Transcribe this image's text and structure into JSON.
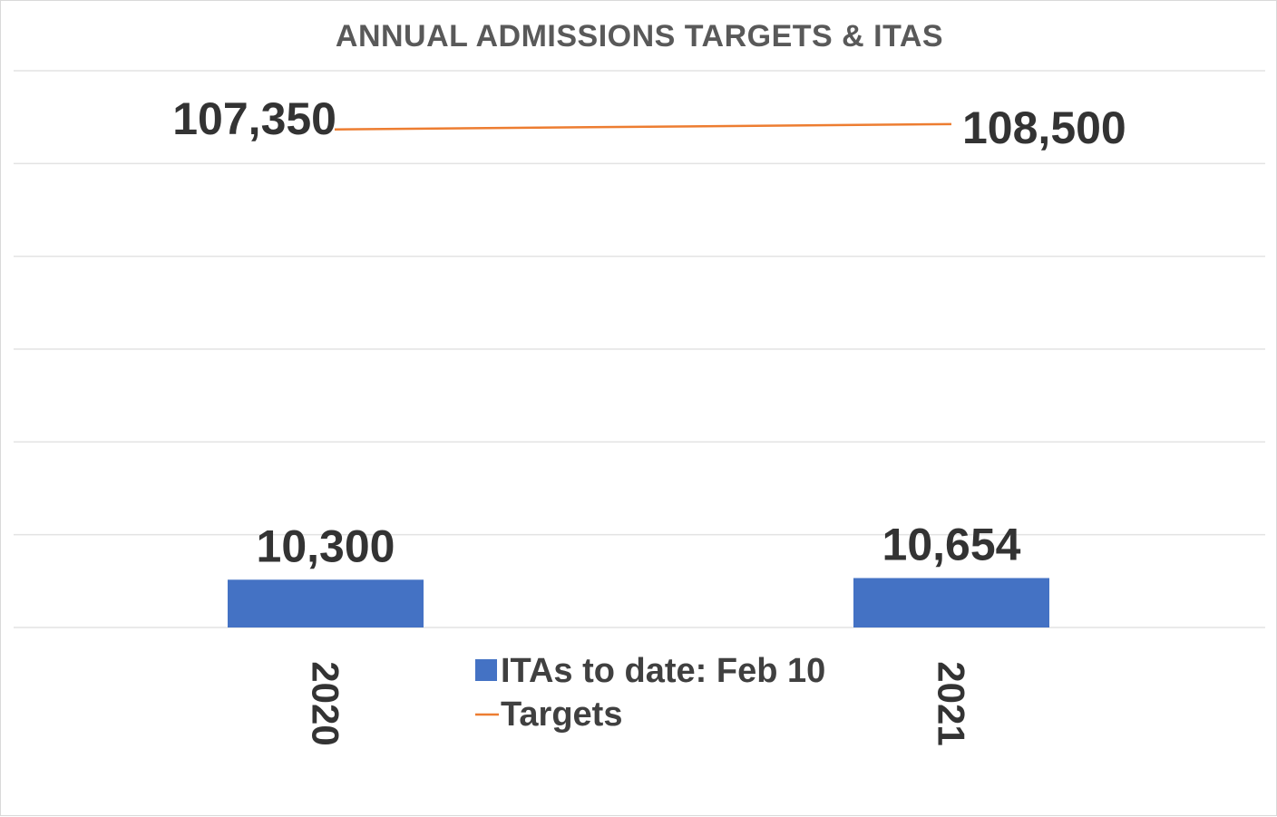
{
  "chart_data": {
    "type": "bar+line",
    "title": "ANNUAL ADMISSIONS TARGETS & ITAS",
    "categories": [
      "2020",
      "2021"
    ],
    "series": [
      {
        "name": "ITAs to date: Feb 10",
        "kind": "bar",
        "color": "#4472c4",
        "values": [
          10300,
          10654
        ],
        "labels": [
          "10,300",
          "10,654"
        ]
      },
      {
        "name": "Targets",
        "kind": "line",
        "color": "#ed7d31",
        "values": [
          107350,
          108500
        ],
        "labels": [
          "107,350",
          "108,500"
        ]
      }
    ],
    "ylim": [
      0,
      120000
    ],
    "grid": true,
    "legend_position": "bottom-center",
    "xlabel": "",
    "ylabel": ""
  }
}
